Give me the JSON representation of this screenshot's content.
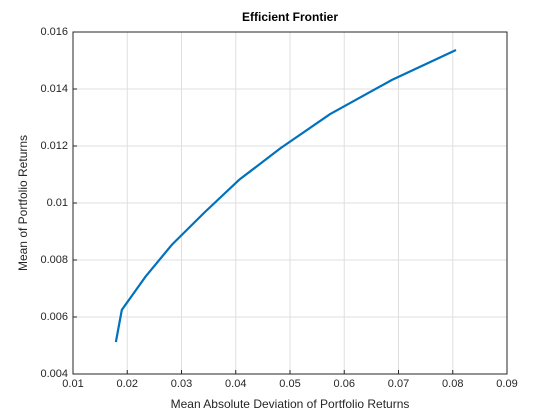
{
  "chart_data": {
    "type": "line",
    "title": "Efficient  Frontier",
    "x_label": "Mean Absolute Deviation of Portfolio Returns",
    "y_label": "Mean of Portfolio Returns",
    "x": [
      0.0179,
      0.019,
      0.0233,
      0.0282,
      0.0343,
      0.0406,
      0.0483,
      0.0574,
      0.0688,
      0.0806
    ],
    "series": [
      {
        "color": "#0072bd",
        "values": [
          0.00512,
          0.00625,
          0.0074,
          0.00853,
          0.00968,
          0.01081,
          0.01193,
          0.01312,
          0.01432,
          0.01537
        ]
      }
    ],
    "xlim": [
      0.01,
      0.09
    ],
    "xticks": [
      0.01,
      0.02,
      0.03,
      0.04,
      0.05,
      0.06,
      0.07,
      0.08,
      0.09
    ],
    "ylim": [
      0.004,
      0.016
    ],
    "yticks": [
      0.004,
      0.006,
      0.008,
      0.01,
      0.012,
      0.014,
      0.016
    ],
    "grid": true
  }
}
